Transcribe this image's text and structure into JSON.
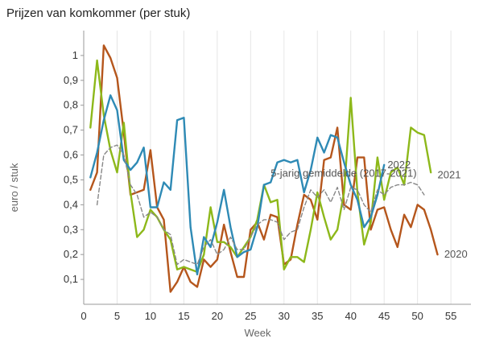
{
  "chart_data": {
    "type": "line",
    "title": "Prijzen van komkommer (per stuk)",
    "xlabel": "Week",
    "ylabel": "euro / stuk",
    "xlim": [
      0,
      58
    ],
    "ylim": [
      0.0,
      1.1
    ],
    "xticks": [
      "0",
      "5",
      "10",
      "15",
      "20",
      "25",
      "30",
      "35",
      "40",
      "45",
      "50",
      "55"
    ],
    "yticks": [
      "0,1",
      "0,2",
      "0,3",
      "0,4",
      "0,5",
      "0,6",
      "0,7",
      "0,8",
      "0,9",
      "1"
    ],
    "grid": "vertical",
    "legend": "none (direct labels at line ends)",
    "series": [
      {
        "name": "2020",
        "color": "#b5561c",
        "dash": false,
        "label_pos": [
          54,
          0.2
        ],
        "values": [
          [
            1,
            0.46
          ],
          [
            2,
            0.53
          ],
          [
            3,
            1.04
          ],
          [
            4,
            0.99
          ],
          [
            5,
            0.91
          ],
          [
            6,
            0.69
          ],
          [
            7,
            0.44
          ],
          [
            8,
            0.45
          ],
          [
            9,
            0.46
          ],
          [
            10,
            0.62
          ],
          [
            11,
            0.39
          ],
          [
            12,
            0.34
          ],
          [
            13,
            0.05
          ],
          [
            14,
            0.09
          ],
          [
            15,
            0.15
          ],
          [
            16,
            0.09
          ],
          [
            17,
            0.07
          ],
          [
            18,
            0.18
          ],
          [
            19,
            0.15
          ],
          [
            20,
            0.18
          ],
          [
            21,
            0.32
          ],
          [
            22,
            0.21
          ],
          [
            23,
            0.11
          ],
          [
            24,
            0.11
          ],
          [
            25,
            0.3
          ],
          [
            26,
            0.33
          ],
          [
            27,
            0.26
          ],
          [
            28,
            0.36
          ],
          [
            29,
            0.35
          ],
          [
            30,
            0.16
          ],
          [
            31,
            0.18
          ],
          [
            32,
            0.32
          ],
          [
            33,
            0.44
          ],
          [
            34,
            0.42
          ],
          [
            35,
            0.34
          ],
          [
            36,
            0.58
          ],
          [
            37,
            0.59
          ],
          [
            38,
            0.71
          ],
          [
            39,
            0.4
          ],
          [
            40,
            0.38
          ],
          [
            41,
            0.59
          ],
          [
            42,
            0.59
          ],
          [
            43,
            0.3
          ],
          [
            44,
            0.38
          ],
          [
            45,
            0.39
          ],
          [
            46,
            0.3
          ],
          [
            47,
            0.23
          ],
          [
            48,
            0.36
          ],
          [
            49,
            0.31
          ],
          [
            50,
            0.4
          ],
          [
            51,
            0.38
          ],
          [
            52,
            0.3
          ],
          [
            53,
            0.2
          ]
        ]
      },
      {
        "name": "2021",
        "color": "#8db81a",
        "dash": false,
        "label_pos": [
          53,
          0.52
        ],
        "values": [
          [
            1,
            0.71
          ],
          [
            2,
            0.98
          ],
          [
            3,
            0.76
          ],
          [
            4,
            0.62
          ],
          [
            5,
            0.53
          ],
          [
            6,
            0.73
          ],
          [
            7,
            0.45
          ],
          [
            8,
            0.27
          ],
          [
            9,
            0.3
          ],
          [
            10,
            0.38
          ],
          [
            11,
            0.35
          ],
          [
            12,
            0.3
          ],
          [
            13,
            0.26
          ],
          [
            14,
            0.14
          ],
          [
            15,
            0.15
          ],
          [
            16,
            0.14
          ],
          [
            17,
            0.13
          ],
          [
            18,
            0.2
          ],
          [
            19,
            0.39
          ],
          [
            20,
            0.25
          ],
          [
            21,
            0.25
          ],
          [
            22,
            0.23
          ],
          [
            23,
            0.19
          ],
          [
            24,
            0.23
          ],
          [
            25,
            0.27
          ],
          [
            26,
            0.34
          ],
          [
            27,
            0.48
          ],
          [
            28,
            0.41
          ],
          [
            29,
            0.42
          ],
          [
            30,
            0.14
          ],
          [
            31,
            0.19
          ],
          [
            32,
            0.19
          ],
          [
            33,
            0.17
          ],
          [
            34,
            0.3
          ],
          [
            35,
            0.45
          ],
          [
            36,
            0.35
          ],
          [
            37,
            0.26
          ],
          [
            38,
            0.3
          ],
          [
            39,
            0.45
          ],
          [
            40,
            0.83
          ],
          [
            41,
            0.45
          ],
          [
            42,
            0.24
          ],
          [
            43,
            0.33
          ],
          [
            44,
            0.59
          ],
          [
            45,
            0.42
          ],
          [
            46,
            0.53
          ],
          [
            47,
            0.55
          ],
          [
            48,
            0.48
          ],
          [
            49,
            0.71
          ],
          [
            50,
            0.69
          ],
          [
            51,
            0.68
          ],
          [
            52,
            0.53
          ]
        ]
      },
      {
        "name": "2022",
        "color": "#2e8ab5",
        "dash": false,
        "label_pos": [
          45.5,
          0.56
        ],
        "values": [
          [
            1,
            0.51
          ],
          [
            2,
            0.61
          ],
          [
            3,
            0.74
          ],
          [
            4,
            0.84
          ],
          [
            5,
            0.78
          ],
          [
            6,
            0.58
          ],
          [
            7,
            0.54
          ],
          [
            8,
            0.57
          ],
          [
            9,
            0.63
          ],
          [
            10,
            0.39
          ],
          [
            11,
            0.39
          ],
          [
            12,
            0.49
          ],
          [
            13,
            0.46
          ],
          [
            14,
            0.74
          ],
          [
            15,
            0.75
          ],
          [
            16,
            0.31
          ],
          [
            17,
            0.12
          ],
          [
            18,
            0.27
          ],
          [
            19,
            0.23
          ],
          [
            20,
            0.33
          ],
          [
            21,
            0.46
          ],
          [
            22,
            0.31
          ],
          [
            23,
            0.19
          ],
          [
            24,
            0.21
          ],
          [
            25,
            0.22
          ],
          [
            26,
            0.31
          ],
          [
            27,
            0.48
          ],
          [
            28,
            0.49
          ],
          [
            29,
            0.57
          ],
          [
            30,
            0.58
          ],
          [
            31,
            0.57
          ],
          [
            32,
            0.58
          ],
          [
            33,
            0.45
          ],
          [
            34,
            0.54
          ],
          [
            35,
            0.67
          ],
          [
            36,
            0.61
          ],
          [
            37,
            0.68
          ],
          [
            38,
            0.67
          ],
          [
            39,
            0.57
          ],
          [
            40,
            0.48
          ],
          [
            41,
            0.42
          ],
          [
            42,
            0.31
          ],
          [
            43,
            0.35
          ],
          [
            44,
            0.44
          ],
          [
            45,
            0.56
          ]
        ]
      },
      {
        "name": "5-jarig gemiddelde (2017-2021)",
        "color": "#888888",
        "dash": true,
        "label_pos": [
          28,
          0.525
        ],
        "values": [
          [
            2,
            0.4
          ],
          [
            3,
            0.6
          ],
          [
            4,
            0.63
          ],
          [
            5,
            0.64
          ],
          [
            6,
            0.6
          ],
          [
            7,
            0.48
          ],
          [
            8,
            0.44
          ],
          [
            9,
            0.35
          ],
          [
            10,
            0.37
          ],
          [
            11,
            0.35
          ],
          [
            12,
            0.3
          ],
          [
            13,
            0.28
          ],
          [
            14,
            0.16
          ],
          [
            15,
            0.18
          ],
          [
            16,
            0.17
          ],
          [
            17,
            0.16
          ],
          [
            18,
            0.23
          ],
          [
            19,
            0.26
          ],
          [
            20,
            0.2
          ],
          [
            21,
            0.22
          ],
          [
            22,
            0.27
          ],
          [
            23,
            0.22
          ],
          [
            24,
            0.22
          ],
          [
            25,
            0.27
          ],
          [
            26,
            0.32
          ],
          [
            27,
            0.34
          ],
          [
            28,
            0.34
          ],
          [
            29,
            0.33
          ],
          [
            30,
            0.26
          ],
          [
            31,
            0.29
          ],
          [
            32,
            0.3
          ],
          [
            33,
            0.39
          ],
          [
            34,
            0.46
          ],
          [
            35,
            0.43
          ],
          [
            36,
            0.46
          ],
          [
            37,
            0.41
          ],
          [
            38,
            0.47
          ],
          [
            39,
            0.38
          ],
          [
            40,
            0.47
          ],
          [
            41,
            0.46
          ],
          [
            42,
            0.4
          ],
          [
            43,
            0.37
          ],
          [
            44,
            0.46
          ],
          [
            45,
            0.44
          ],
          [
            46,
            0.47
          ],
          [
            47,
            0.48
          ],
          [
            48,
            0.48
          ],
          [
            49,
            0.49
          ],
          [
            50,
            0.48
          ],
          [
            51,
            0.44
          ]
        ]
      }
    ]
  }
}
